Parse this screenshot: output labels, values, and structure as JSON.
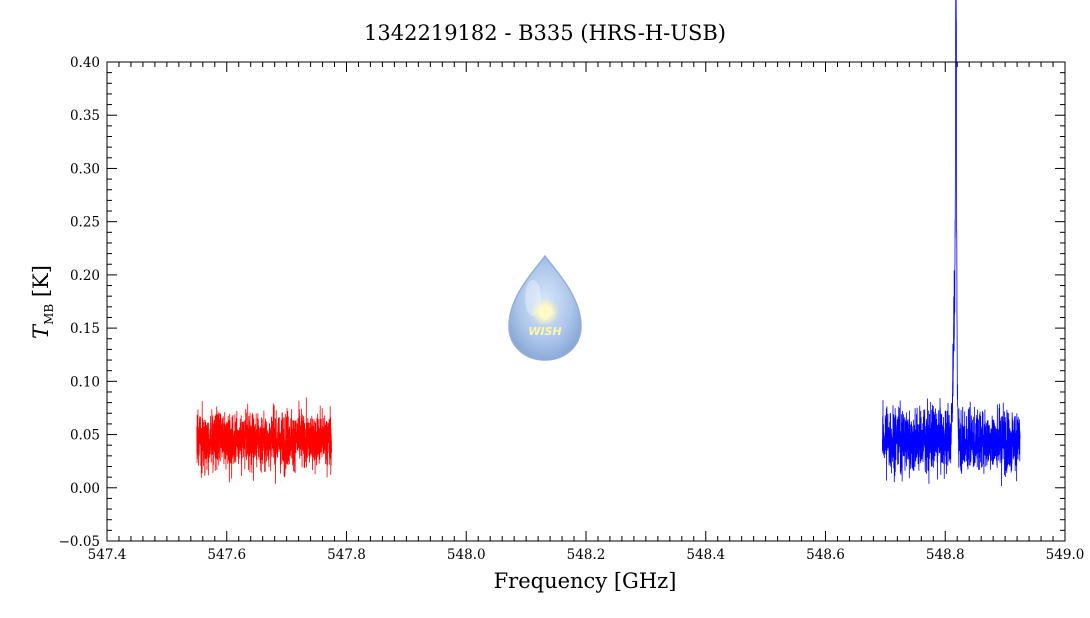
{
  "chart_data": {
    "type": "line",
    "title": "1342219182 - B335 (HRS-H-USB)",
    "xlabel": "Frequency [GHz]",
    "ylabel": {
      "main": "T",
      "sub": "MB",
      "unit": "[K]"
    },
    "xlim": [
      547.4,
      549.0
    ],
    "ylim": [
      -0.05,
      0.4
    ],
    "x_ticks": [
      "547.4",
      "547.6",
      "547.8",
      "548.0",
      "548.2",
      "548.4",
      "548.6",
      "548.8",
      "549.0"
    ],
    "y_ticks": [
      "−0.05",
      "0.00",
      "0.05",
      "0.10",
      "0.15",
      "0.20",
      "0.25",
      "0.30",
      "0.35",
      "0.40"
    ],
    "grid": false,
    "logo_text": "WISH",
    "series": [
      {
        "color": "#ff0000",
        "x_range": [
          547.55,
          547.775
        ],
        "baseline": 0.045,
        "noise_min": -0.01,
        "noise_max": 0.125,
        "lines": []
      },
      {
        "color": "#0000ff",
        "x_range": [
          548.695,
          548.925
        ],
        "baseline": 0.045,
        "noise_min": -0.03,
        "noise_max": 0.12,
        "lines": [
          {
            "x": 548.818,
            "peak": 0.383,
            "width": 0.0012
          },
          {
            "x": 548.816,
            "peak": 0.17,
            "width": 0.004
          }
        ]
      }
    ]
  }
}
